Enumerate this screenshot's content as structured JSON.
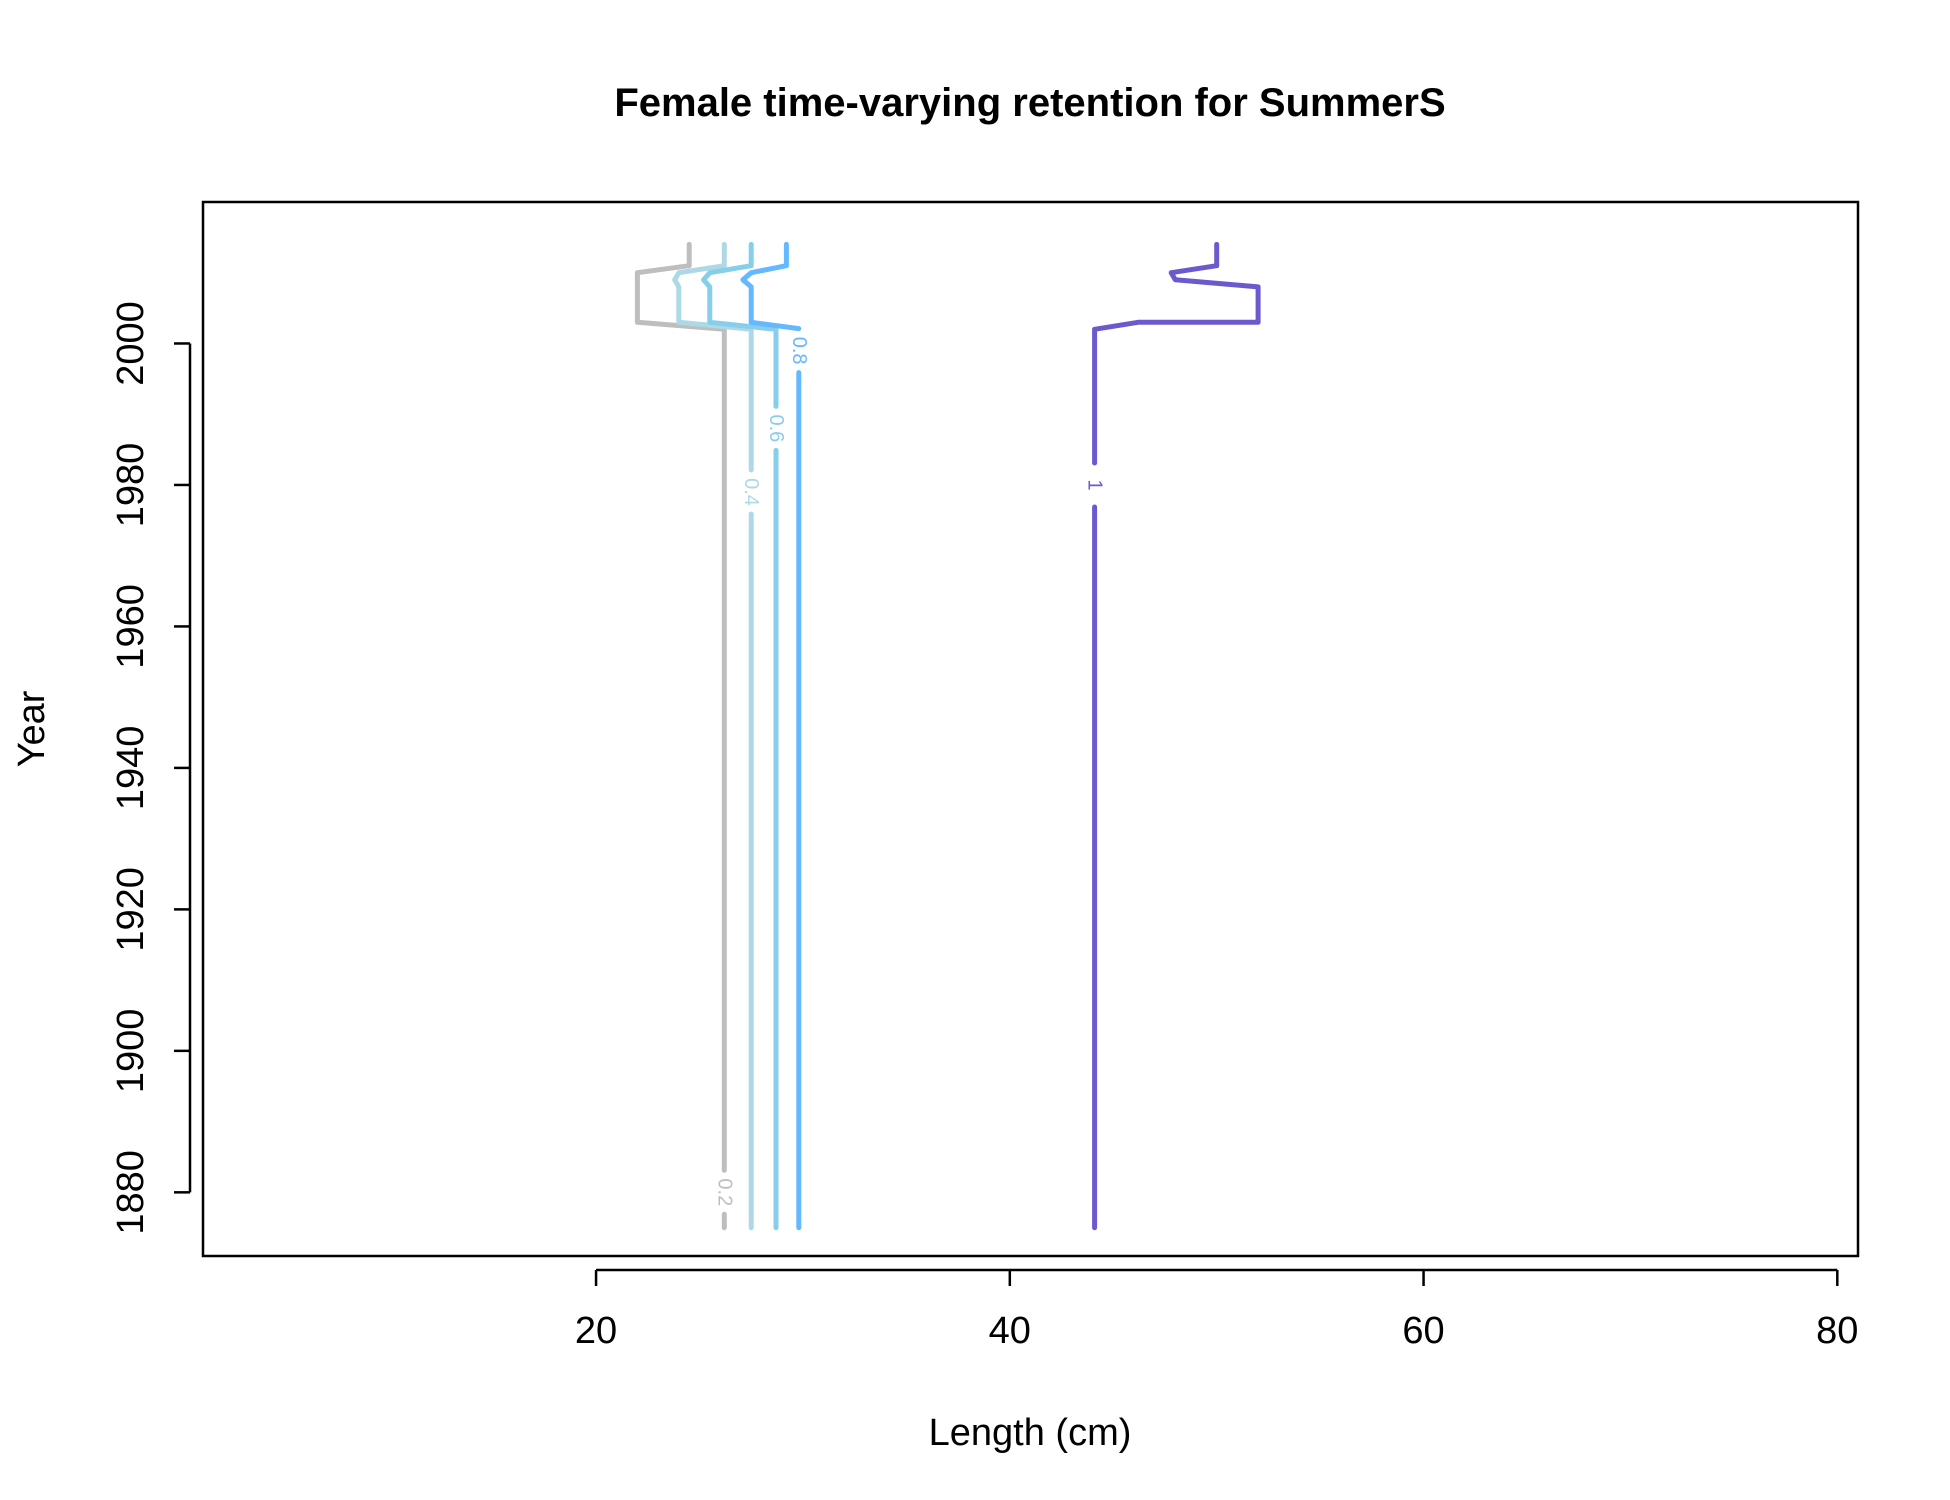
{
  "chart_data": {
    "type": "line",
    "title": "Female time-varying retention for SummerS",
    "xlabel": "Length (cm)",
    "ylabel": "Year",
    "xlim": [
      1,
      81
    ],
    "ylim": [
      1871,
      2020
    ],
    "xticks": [
      20,
      40,
      60,
      80
    ],
    "yticks": [
      1880,
      1900,
      1920,
      1940,
      1960,
      1980,
      2000
    ],
    "grid": false,
    "legend": "none",
    "series": [
      {
        "name": "0.2",
        "color": "#BEBEBE",
        "label_at": [
          26.2,
          1880
        ],
        "points": [
          [
            26.2,
            1875
          ],
          [
            26.2,
            2002
          ],
          [
            22.0,
            2003
          ],
          [
            22.0,
            2010
          ],
          [
            24.5,
            2011
          ],
          [
            24.5,
            2014
          ]
        ]
      },
      {
        "name": "0.4",
        "color": "#ADD8E6",
        "label_at": [
          27.5,
          1979
        ],
        "points": [
          [
            27.5,
            1875
          ],
          [
            27.5,
            2002
          ],
          [
            24.0,
            2003
          ],
          [
            24.0,
            2008
          ],
          [
            23.8,
            2009
          ],
          [
            24.0,
            2010
          ],
          [
            26.2,
            2011
          ],
          [
            26.2,
            2014
          ]
        ]
      },
      {
        "name": "0.6",
        "color": "#87CEEB",
        "label_at": [
          28.7,
          1988
        ],
        "points": [
          [
            28.7,
            1875
          ],
          [
            28.7,
            2002
          ],
          [
            25.5,
            2003
          ],
          [
            25.5,
            2008
          ],
          [
            25.2,
            2009
          ],
          [
            25.5,
            2010
          ],
          [
            27.5,
            2011
          ],
          [
            27.5,
            2014
          ]
        ]
      },
      {
        "name": "0.8",
        "color": "#63B8FF",
        "label_at": [
          29.8,
          1999
        ],
        "points": [
          [
            29.8,
            1875
          ],
          [
            29.8,
            2002
          ],
          [
            27.5,
            2003
          ],
          [
            27.5,
            2008
          ],
          [
            27.1,
            2009
          ],
          [
            27.5,
            2010
          ],
          [
            29.2,
            2011
          ],
          [
            29.2,
            2014
          ]
        ]
      },
      {
        "name": "1",
        "color": "#6A5ACD",
        "label_at": [
          44.1,
          1980
        ],
        "points": [
          [
            44.1,
            1875
          ],
          [
            44.1,
            2002
          ],
          [
            46.2,
            2003
          ],
          [
            52.0,
            2003
          ],
          [
            52.0,
            2008
          ],
          [
            48.0,
            2009
          ],
          [
            47.8,
            2010
          ],
          [
            50.0,
            2011
          ],
          [
            50.0,
            2014
          ]
        ]
      }
    ]
  }
}
